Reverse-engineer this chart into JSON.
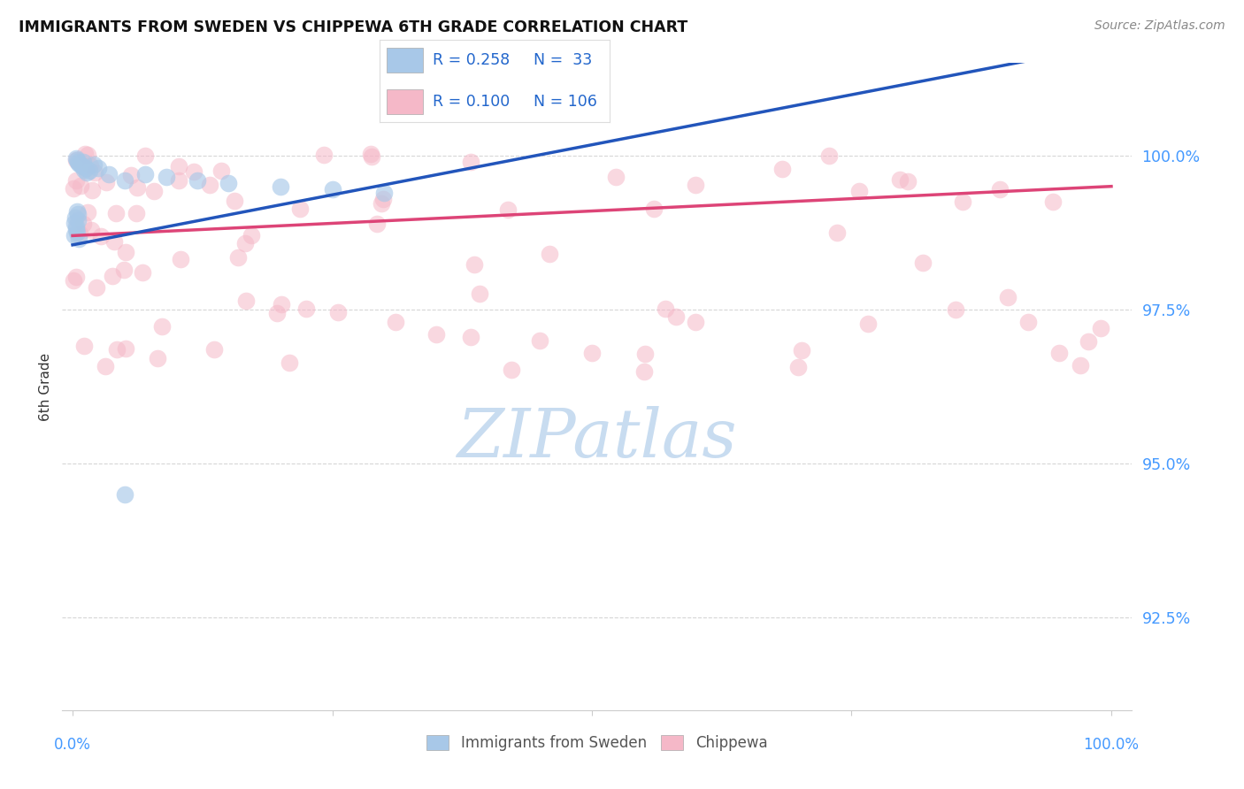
{
  "title": "IMMIGRANTS FROM SWEDEN VS CHIPPEWA 6TH GRADE CORRELATION CHART",
  "source": "Source: ZipAtlas.com",
  "ylabel": "6th Grade",
  "ytick_labels": [
    "92.5%",
    "95.0%",
    "97.5%",
    "100.0%"
  ],
  "ytick_values": [
    92.5,
    95.0,
    97.5,
    100.0
  ],
  "ylim": [
    91.0,
    101.5
  ],
  "xlim": [
    -1.0,
    102.0
  ],
  "legend_R_blue": "R = 0.258",
  "legend_N_blue": "N =  33",
  "legend_R_pink": "R = 0.100",
  "legend_N_pink": "N = 106",
  "blue_scatter_color": "#A8C8E8",
  "pink_scatter_color": "#F5B8C8",
  "trend_blue": "#2255BB",
  "trend_pink": "#DD4477",
  "legend_text_color": "#2266CC",
  "grid_color": "#CCCCCC",
  "background_color": "#FFFFFF",
  "title_color": "#111111",
  "source_color": "#888888",
  "ylabel_color": "#333333",
  "ytick_color": "#4499FF",
  "xtick_color": "#4499FF",
  "blue_trend_start_x": 0,
  "blue_trend_start_y": 98.55,
  "blue_trend_end_x": 100,
  "blue_trend_end_y": 101.8,
  "pink_trend_start_x": 0,
  "pink_trend_start_y": 98.7,
  "pink_trend_end_x": 100,
  "pink_trend_end_y": 99.5,
  "watermark_text": "ZIPatlas",
  "watermark_color": "#C8DCF0",
  "bottom_legend_labels": [
    "Immigrants from Sweden",
    "Chippewa"
  ]
}
